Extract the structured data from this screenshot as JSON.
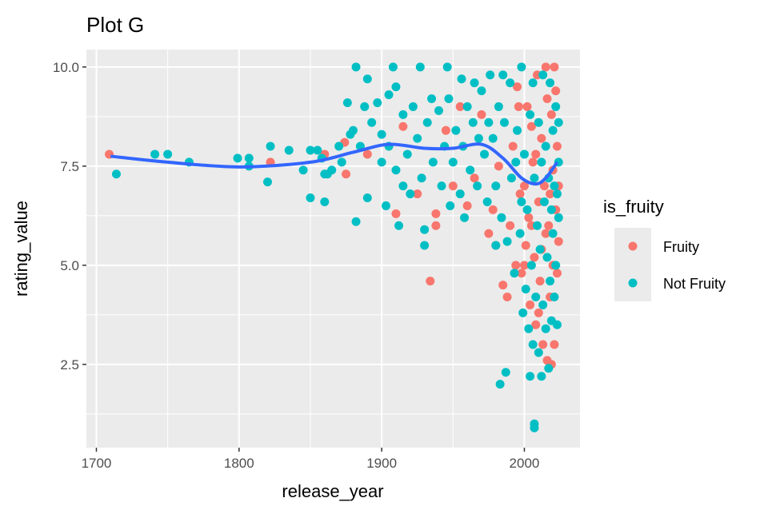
{
  "chart_data": {
    "type": "scatter",
    "title": "Plot G",
    "xlabel": "release_year",
    "ylabel": "rating_value",
    "xlim": [
      1693,
      2039
    ],
    "ylim": [
      0.4,
      10.44
    ],
    "x_ticks": [
      1700,
      1800,
      1900,
      2000
    ],
    "y_ticks": [
      2.5,
      5.0,
      7.5,
      10.0
    ],
    "x_tick_labels": [
      "1700",
      "1800",
      "1900",
      "2000"
    ],
    "y_tick_labels": [
      "2.5",
      "5.0",
      "7.5",
      "10.0"
    ],
    "grid": true,
    "legend": {
      "title": "is_fruity",
      "position": "right",
      "entries": [
        "Fruity",
        "Not Fruity"
      ]
    },
    "colors": {
      "Fruity": "#F8766D",
      "Not Fruity": "#00BFC4",
      "smooth": "#3366FF",
      "panel": "#EBEBEB"
    },
    "series": [
      {
        "name": "Fruity",
        "points": [
          [
            1709,
            7.8
          ],
          [
            1822,
            7.6
          ],
          [
            1860,
            7.8
          ],
          [
            1875,
            7.3
          ],
          [
            1874,
            8.1
          ],
          [
            1890,
            7.8
          ],
          [
            1934,
            4.6
          ],
          [
            1938,
            6.3
          ],
          [
            1938,
            6.0
          ],
          [
            1910,
            6.3
          ],
          [
            1915,
            8.5
          ],
          [
            1925,
            6.8
          ],
          [
            1945,
            8.4
          ],
          [
            1950,
            7.0
          ],
          [
            1955,
            9.0
          ],
          [
            1960,
            6.5
          ],
          [
            1965,
            7.2
          ],
          [
            1970,
            8.8
          ],
          [
            1975,
            5.8
          ],
          [
            1978,
            6.4
          ],
          [
            1980,
            5.5
          ],
          [
            1982,
            7.5
          ],
          [
            1985,
            4.5
          ],
          [
            1988,
            4.2
          ],
          [
            1990,
            6.0
          ],
          [
            1992,
            8.0
          ],
          [
            1994,
            5.0
          ],
          [
            1995,
            9.5
          ],
          [
            1997,
            6.8
          ],
          [
            1998,
            4.8
          ],
          [
            2000,
            7.0
          ],
          [
            2001,
            5.5
          ],
          [
            2002,
            9.0
          ],
          [
            2003,
            6.2
          ],
          [
            2004,
            4.0
          ],
          [
            2005,
            8.5
          ],
          [
            2006,
            7.6
          ],
          [
            2007,
            5.2
          ],
          [
            2008,
            3.5
          ],
          [
            2009,
            9.8
          ],
          [
            2010,
            6.6
          ],
          [
            2011,
            4.6
          ],
          [
            2012,
            8.2
          ],
          [
            2013,
            3.0
          ],
          [
            2014,
            7.0
          ],
          [
            2015,
            5.8
          ],
          [
            2016,
            2.6
          ],
          [
            2016,
            9.2
          ],
          [
            2017,
            6.0
          ],
          [
            2018,
            4.2
          ],
          [
            2019,
            2.5
          ],
          [
            2019,
            8.8
          ],
          [
            2020,
            5.0
          ],
          [
            2020,
            7.4
          ],
          [
            2021,
            3.0
          ],
          [
            2021,
            10.0
          ],
          [
            2022,
            6.4
          ],
          [
            2023,
            4.8
          ],
          [
            2023,
            8.0
          ],
          [
            2024,
            5.6
          ],
          [
            2024,
            7.0
          ],
          [
            2015,
            10.0
          ],
          [
            2010,
            3.8
          ],
          [
            2005,
            6.0
          ],
          [
            2000,
            5.0
          ],
          [
            1996,
            9.0
          ],
          [
            2018,
            6.8
          ],
          [
            2012,
            5.4
          ],
          [
            2008,
            7.8
          ],
          [
            2022,
            9.4
          ]
        ]
      },
      {
        "name": "Not Fruity",
        "points": [
          [
            1714,
            7.3
          ],
          [
            1741,
            7.8
          ],
          [
            1750,
            7.8
          ],
          [
            1765,
            7.6
          ],
          [
            1799,
            7.7
          ],
          [
            1807,
            7.7
          ],
          [
            1807,
            7.5
          ],
          [
            1822,
            8.0
          ],
          [
            1820,
            7.1
          ],
          [
            1835,
            7.9
          ],
          [
            1845,
            7.4
          ],
          [
            1850,
            7.9
          ],
          [
            1850,
            6.7
          ],
          [
            1855,
            7.9
          ],
          [
            1858,
            7.7
          ],
          [
            1860,
            7.3
          ],
          [
            1860,
            6.6
          ],
          [
            1862,
            7.3
          ],
          [
            1865,
            7.4
          ],
          [
            1870,
            8.0
          ],
          [
            1872,
            7.6
          ],
          [
            1876,
            9.1
          ],
          [
            1878,
            8.3
          ],
          [
            1880,
            8.4
          ],
          [
            1882,
            10.0
          ],
          [
            1882,
            6.1
          ],
          [
            1885,
            8.0
          ],
          [
            1890,
            9.7
          ],
          [
            1890,
            6.7
          ],
          [
            1888,
            9.0
          ],
          [
            1893,
            8.6
          ],
          [
            1897,
            9.1
          ],
          [
            1900,
            8.3
          ],
          [
            1903,
            6.5
          ],
          [
            1905,
            9.3
          ],
          [
            1908,
            10.0
          ],
          [
            1910,
            9.5
          ],
          [
            1912,
            6.0
          ],
          [
            1915,
            7.0
          ],
          [
            1920,
            6.8
          ],
          [
            1927,
            10.0
          ],
          [
            1930,
            5.9
          ],
          [
            1930,
            5.5
          ],
          [
            1935,
            9.2
          ],
          [
            1946,
            10.0
          ],
          [
            1956,
            9.7
          ],
          [
            1948,
            6.5
          ],
          [
            1958,
            6.2
          ],
          [
            1965,
            9.6
          ],
          [
            1983,
            2.0
          ],
          [
            1987,
            2.3
          ],
          [
            2004,
            2.2
          ],
          [
            2007,
            1.0
          ],
          [
            2007,
            0.9
          ],
          [
            2012,
            2.2
          ],
          [
            1900,
            7.6
          ],
          [
            1905,
            8.0
          ],
          [
            1910,
            7.4
          ],
          [
            1915,
            8.8
          ],
          [
            1918,
            7.8
          ],
          [
            1922,
            9.0
          ],
          [
            1925,
            8.2
          ],
          [
            1928,
            7.2
          ],
          [
            1932,
            8.6
          ],
          [
            1936,
            7.6
          ],
          [
            1940,
            8.9
          ],
          [
            1942,
            7.0
          ],
          [
            1944,
            8.0
          ],
          [
            1947,
            9.2
          ],
          [
            1950,
            7.6
          ],
          [
            1952,
            8.4
          ],
          [
            1955,
            6.8
          ],
          [
            1957,
            8.0
          ],
          [
            1960,
            9.0
          ],
          [
            1962,
            7.4
          ],
          [
            1964,
            8.6
          ],
          [
            1967,
            7.0
          ],
          [
            1970,
            9.4
          ],
          [
            1972,
            7.8
          ],
          [
            1974,
            6.6
          ],
          [
            1976,
            9.8
          ],
          [
            1978,
            8.2
          ],
          [
            1980,
            7.0
          ],
          [
            1982,
            9.0
          ],
          [
            1984,
            6.2
          ],
          [
            1986,
            8.6
          ],
          [
            1988,
            5.6
          ],
          [
            1990,
            9.6
          ],
          [
            1991,
            7.2
          ],
          [
            1993,
            4.8
          ],
          [
            1995,
            8.4
          ],
          [
            1997,
            5.8
          ],
          [
            1998,
            10.0
          ],
          [
            1999,
            3.8
          ],
          [
            2000,
            7.8
          ],
          [
            2001,
            4.4
          ],
          [
            2002,
            6.4
          ],
          [
            2003,
            3.4
          ],
          [
            2004,
            8.8
          ],
          [
            2005,
            5.0
          ],
          [
            2006,
            3.0
          ],
          [
            2006,
            9.6
          ],
          [
            2007,
            7.2
          ],
          [
            2008,
            4.2
          ],
          [
            2009,
            6.0
          ],
          [
            2010,
            2.8
          ],
          [
            2010,
            8.6
          ],
          [
            2011,
            5.4
          ],
          [
            2012,
            7.6
          ],
          [
            2013,
            4.0
          ],
          [
            2013,
            9.8
          ],
          [
            2014,
            6.6
          ],
          [
            2015,
            3.4
          ],
          [
            2015,
            8.0
          ],
          [
            2016,
            5.2
          ],
          [
            2017,
            2.4
          ],
          [
            2017,
            7.2
          ],
          [
            2018,
            9.6
          ],
          [
            2018,
            4.6
          ],
          [
            2019,
            6.4
          ],
          [
            2019,
            3.6
          ],
          [
            2020,
            8.4
          ],
          [
            2020,
            5.8
          ],
          [
            2021,
            7.0
          ],
          [
            2021,
            4.2
          ],
          [
            2022,
            9.0
          ],
          [
            2022,
            5.0
          ],
          [
            2023,
            6.8
          ],
          [
            2023,
            3.5
          ],
          [
            2024,
            8.6
          ],
          [
            2024,
            7.6
          ],
          [
            2024,
            6.2
          ],
          [
            1998,
            6.6
          ],
          [
            1994,
            7.6
          ],
          [
            1985,
            9.8
          ],
          [
            1975,
            8.6
          ],
          [
            1968,
            8.2
          ],
          [
            1980,
            5.5
          ]
        ]
      }
    ],
    "smooth": {
      "name": "loess",
      "points": [
        [
          1710,
          7.75
        ],
        [
          1750,
          7.6
        ],
        [
          1800,
          7.48
        ],
        [
          1850,
          7.6
        ],
        [
          1880,
          7.85
        ],
        [
          1905,
          8.05
        ],
        [
          1930,
          7.95
        ],
        [
          1950,
          7.95
        ],
        [
          1970,
          8.05
        ],
        [
          1985,
          7.7
        ],
        [
          1998,
          7.2
        ],
        [
          2008,
          7.05
        ],
        [
          2015,
          7.2
        ],
        [
          2023,
          7.6
        ]
      ]
    }
  }
}
